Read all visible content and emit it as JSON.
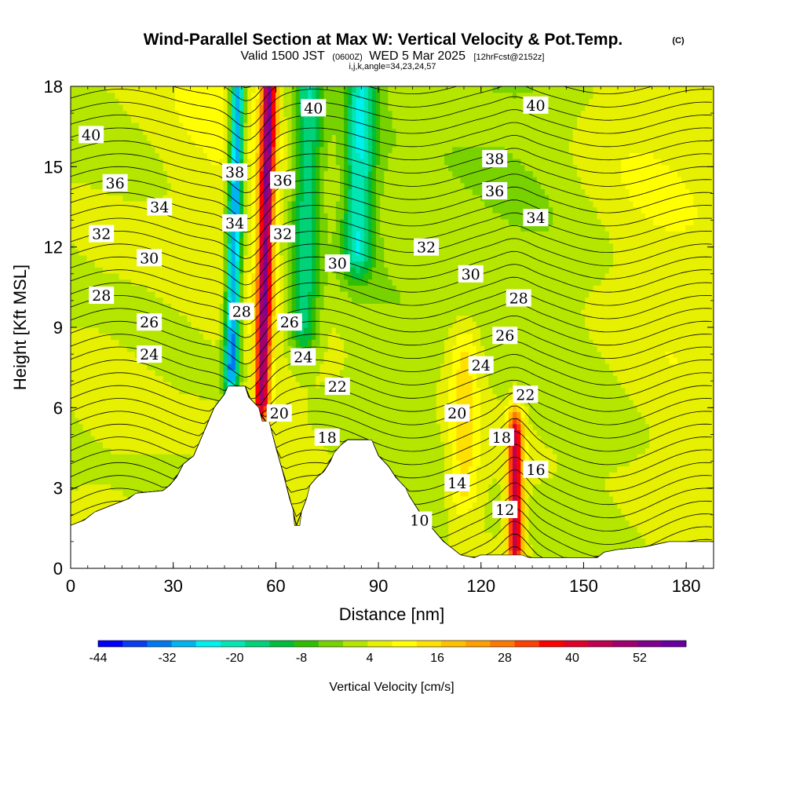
{
  "title": {
    "main": "Wind-Parallel Section at Max W: Vertical Velocity & Pot.Temp.",
    "copyright": "(C)",
    "valid_prefix": "Valid 1500 JST",
    "valid_utc": "(0600Z)",
    "valid_date": "WED 5 Mar 2025",
    "forecast": "[12hrFcst@2152z]",
    "grid_info": "i,j,k,angle=34,23,24,57"
  },
  "chart_data": {
    "type": "heatmap",
    "xlabel": "Distance [nm]",
    "ylabel": "Height [Kft MSL]",
    "xlim": [
      0,
      188
    ],
    "ylim": [
      0,
      18
    ],
    "x_ticks": [
      0,
      30,
      60,
      90,
      120,
      150,
      180
    ],
    "y_ticks": [
      0,
      3,
      6,
      9,
      12,
      15,
      18
    ],
    "colorbar": {
      "label": "Vertical Velocity [cm/s]",
      "tick_labels": [
        "-44",
        "-32",
        "-20",
        "-8",
        "4",
        "16",
        "28",
        "40",
        "52"
      ],
      "colors": [
        "#0000ff",
        "#0a3cf0",
        "#0078f0",
        "#00b4f0",
        "#00f0f0",
        "#00e6b4",
        "#00d278",
        "#00be3c",
        "#32be00",
        "#78d200",
        "#b4e600",
        "#e6f000",
        "#ffff00",
        "#ffe000",
        "#ffc000",
        "#ffa000",
        "#ff7800",
        "#ff4000",
        "#ff0000",
        "#e00028",
        "#c00050",
        "#a00070",
        "#800090",
        "#6a00a0"
      ]
    },
    "velocity_features": [
      {
        "kind": "downdraft",
        "x": 47,
        "y_bottom": 7.5,
        "y_top": 18,
        "w": -40
      },
      {
        "kind": "updraft",
        "x": 56,
        "y_bottom": 6.5,
        "y_top": 18,
        "w": 48
      },
      {
        "kind": "downdraft",
        "x": 68,
        "y_bottom": 9,
        "y_top": 18,
        "w": -22
      },
      {
        "kind": "downdraft",
        "x": 84,
        "y_bottom": 12,
        "y_top": 18,
        "w": -25
      },
      {
        "kind": "updraft",
        "x": 130,
        "y_bottom": 1,
        "y_top": 4.8,
        "w": 44
      },
      {
        "kind": "weak-updraft",
        "x": 115,
        "y_bottom": 3,
        "y_top": 8,
        "w": 12
      }
    ],
    "terrain": [
      [
        0,
        1.6
      ],
      [
        4,
        1.8
      ],
      [
        7,
        2.1
      ],
      [
        13,
        2.4
      ],
      [
        17,
        2.6
      ],
      [
        19,
        2.8
      ],
      [
        27,
        2.9
      ],
      [
        29,
        3.1
      ],
      [
        31,
        3.4
      ],
      [
        33,
        3.9
      ],
      [
        36,
        4.2
      ],
      [
        38,
        4.8
      ],
      [
        40,
        5.4
      ],
      [
        42,
        6.0
      ],
      [
        45,
        6.5
      ],
      [
        46,
        6.8
      ],
      [
        51,
        6.8
      ],
      [
        52,
        6.4
      ],
      [
        55,
        6.0
      ],
      [
        56,
        5.5
      ],
      [
        58,
        5.5
      ],
      [
        60,
        4.5
      ],
      [
        62,
        3.6
      ],
      [
        63,
        3.1
      ],
      [
        64,
        2.6
      ],
      [
        65,
        2.2
      ],
      [
        65.5,
        1.6
      ],
      [
        67,
        1.6
      ],
      [
        67.5,
        2.1
      ],
      [
        69,
        2.6
      ],
      [
        70,
        3.1
      ],
      [
        72,
        3.4
      ],
      [
        74,
        3.6
      ],
      [
        76,
        4.0
      ],
      [
        77,
        4.3
      ],
      [
        79,
        4.6
      ],
      [
        81,
        4.8
      ],
      [
        88,
        4.8
      ],
      [
        90,
        4.2
      ],
      [
        93,
        3.8
      ],
      [
        95,
        3.4
      ],
      [
        98,
        3.0
      ],
      [
        99,
        2.7
      ],
      [
        101,
        2.3
      ],
      [
        103,
        1.9
      ],
      [
        105,
        1.6
      ],
      [
        107,
        1.3
      ],
      [
        109,
        1.0
      ],
      [
        111,
        0.8
      ],
      [
        113,
        0.6
      ],
      [
        114,
        0.5
      ],
      [
        118,
        0.4
      ],
      [
        120,
        0.5
      ],
      [
        126,
        0.5
      ],
      [
        128,
        0.5
      ],
      [
        130,
        0.5
      ],
      [
        132,
        0.5
      ],
      [
        134,
        0.4
      ],
      [
        140,
        0.4
      ],
      [
        145,
        0.4
      ],
      [
        150,
        0.4
      ],
      [
        154,
        0.4
      ],
      [
        156,
        0.6
      ],
      [
        160,
        0.7
      ],
      [
        168,
        0.8
      ],
      [
        175,
        1.0
      ],
      [
        188,
        1.0
      ]
    ],
    "theta_contours": {
      "levels_min": 4,
      "levels_max": 50,
      "labels": [
        {
          "text": "40",
          "x": 6,
          "y": 16.2
        },
        {
          "text": "36",
          "x": 13,
          "y": 14.4
        },
        {
          "text": "34",
          "x": 26,
          "y": 13.5
        },
        {
          "text": "32",
          "x": 9,
          "y": 12.5
        },
        {
          "text": "30",
          "x": 23,
          "y": 11.6
        },
        {
          "text": "28",
          "x": 9,
          "y": 10.2
        },
        {
          "text": "26",
          "x": 23,
          "y": 9.2
        },
        {
          "text": "24",
          "x": 23,
          "y": 8.0
        },
        {
          "text": "38",
          "x": 48,
          "y": 14.8
        },
        {
          "text": "34",
          "x": 48,
          "y": 12.9
        },
        {
          "text": "28",
          "x": 50,
          "y": 9.6
        },
        {
          "text": "36",
          "x": 62,
          "y": 14.5
        },
        {
          "text": "32",
          "x": 62,
          "y": 12.5
        },
        {
          "text": "26",
          "x": 64,
          "y": 9.2
        },
        {
          "text": "24",
          "x": 68,
          "y": 7.9
        },
        {
          "text": "20",
          "x": 61,
          "y": 5.8
        },
        {
          "text": "40",
          "x": 71,
          "y": 17.2
        },
        {
          "text": "30",
          "x": 78,
          "y": 11.4
        },
        {
          "text": "22",
          "x": 78,
          "y": 6.8
        },
        {
          "text": "18",
          "x": 75,
          "y": 4.9
        },
        {
          "text": "32",
          "x": 104,
          "y": 12.0
        },
        {
          "text": "30",
          "x": 117,
          "y": 11.0
        },
        {
          "text": "20",
          "x": 113,
          "y": 5.8
        },
        {
          "text": "14",
          "x": 113,
          "y": 3.2
        },
        {
          "text": "10",
          "x": 102,
          "y": 1.8
        },
        {
          "text": "38",
          "x": 124,
          "y": 15.3
        },
        {
          "text": "36",
          "x": 124,
          "y": 14.1
        },
        {
          "text": "24",
          "x": 120,
          "y": 7.6
        },
        {
          "text": "26",
          "x": 127,
          "y": 8.7
        },
        {
          "text": "28",
          "x": 131,
          "y": 10.1
        },
        {
          "text": "18",
          "x": 126,
          "y": 4.9
        },
        {
          "text": "12",
          "x": 127,
          "y": 2.2
        },
        {
          "text": "40",
          "x": 136,
          "y": 17.3
        },
        {
          "text": "34",
          "x": 136,
          "y": 13.1
        },
        {
          "text": "22",
          "x": 133,
          "y": 6.5
        },
        {
          "text": "16",
          "x": 136,
          "y": 3.7
        }
      ]
    }
  }
}
